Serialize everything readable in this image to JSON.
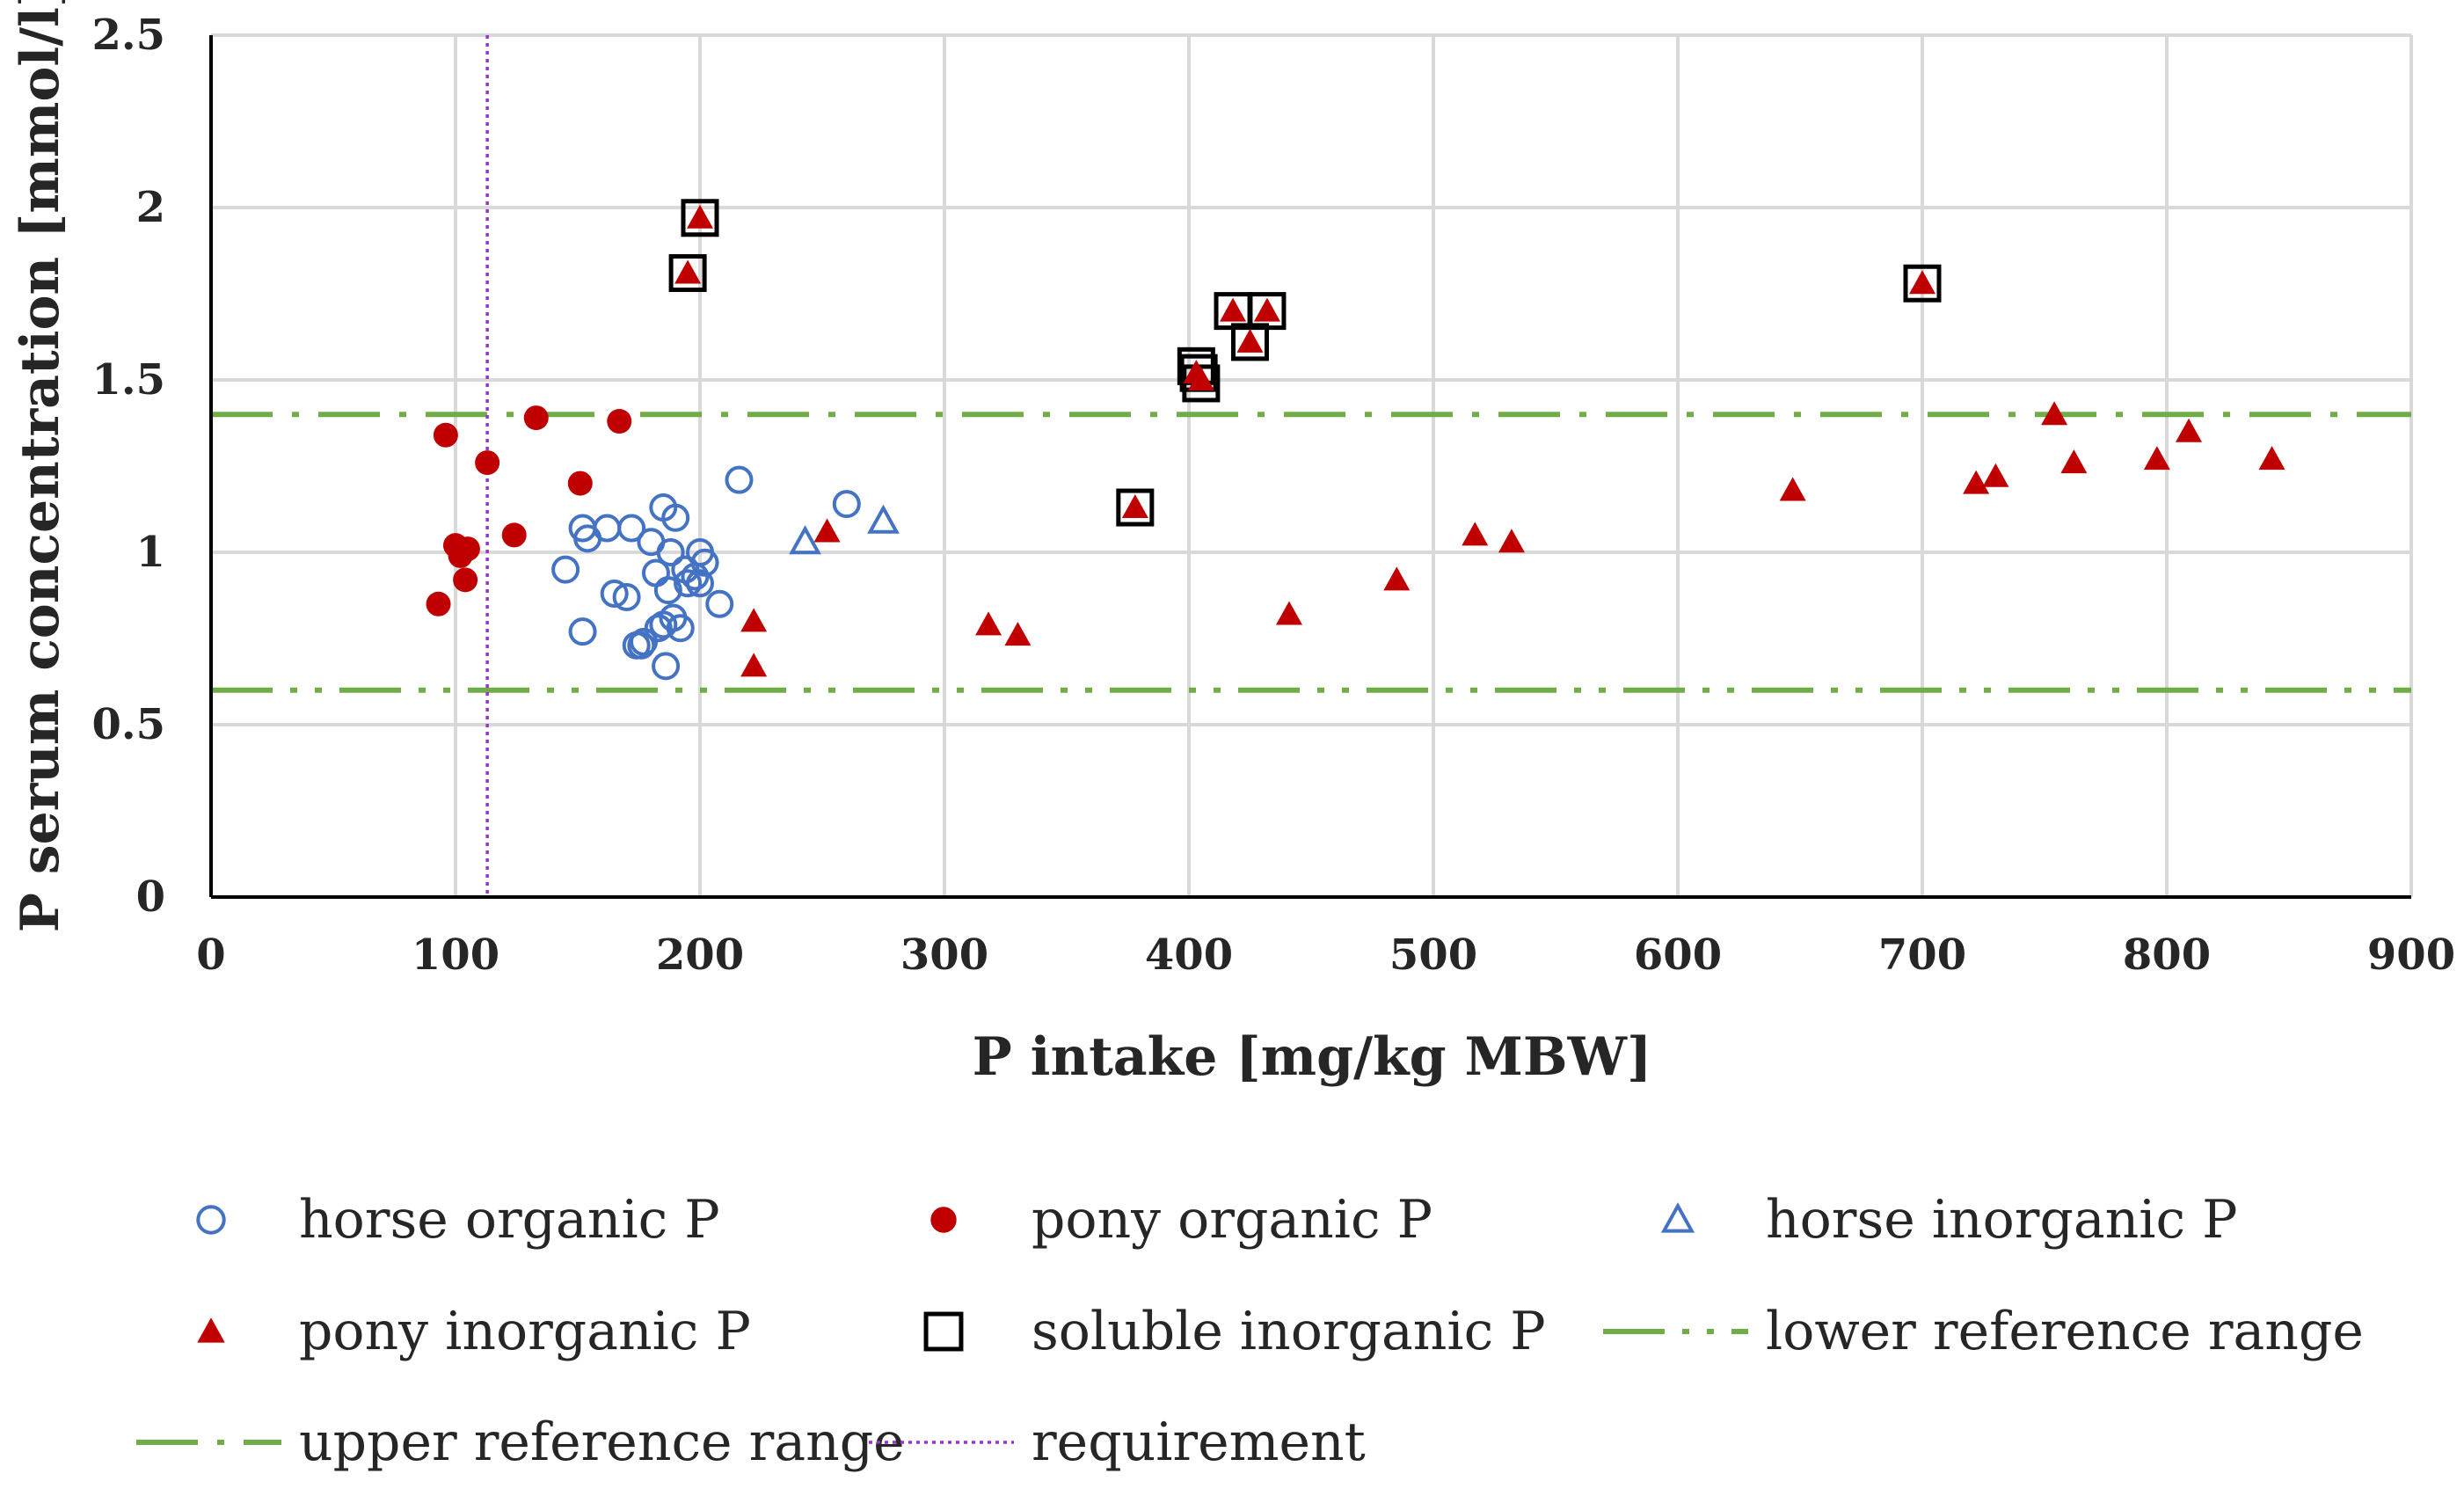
{
  "chart_data": {
    "type": "scatter",
    "title": "",
    "xlabel": "P intake [mg/kg MBW]",
    "ylabel": "P serum concentration [mmol/l]",
    "xlim": [
      0,
      900
    ],
    "ylim": [
      0,
      2.5
    ],
    "x_ticks": [
      0,
      100,
      200,
      300,
      400,
      500,
      600,
      700,
      800,
      900
    ],
    "y_ticks": [
      0,
      0.5,
      1,
      1.5,
      2,
      2.5
    ],
    "x_tick_labels": [
      "0",
      "100",
      "200",
      "300",
      "400",
      "500",
      "600",
      "700",
      "800",
      "900"
    ],
    "y_tick_labels": [
      "0",
      "0.5",
      "1",
      "1.5",
      "2",
      "2.5"
    ],
    "grid": true,
    "legend_position": "bottom",
    "series": [
      {
        "name": "horse organic P",
        "marker": "circle-open",
        "color": "#4472C4",
        "x": [
          145,
          152,
          152,
          154,
          162,
          165,
          170,
          172,
          174,
          176,
          177,
          180,
          182,
          183,
          185,
          185,
          186,
          187,
          188,
          189,
          190,
          192,
          194,
          195,
          198,
          200,
          200,
          202,
          208,
          216,
          260
        ],
        "y": [
          0.95,
          1.07,
          0.77,
          1.04,
          1.07,
          0.88,
          0.87,
          1.07,
          0.73,
          0.73,
          0.74,
          1.03,
          0.94,
          0.78,
          0.79,
          1.13,
          0.67,
          0.89,
          1.0,
          0.81,
          1.1,
          0.78,
          0.95,
          0.91,
          0.93,
          1.0,
          0.91,
          0.97,
          0.85,
          1.21,
          1.14
        ]
      },
      {
        "name": "pony organic P",
        "marker": "circle-filled",
        "color": "#C00000",
        "x": [
          93,
          96,
          100,
          102,
          104,
          105,
          113,
          124,
          133,
          151,
          167
        ],
        "y": [
          0.85,
          1.34,
          1.02,
          0.99,
          0.92,
          1.01,
          1.26,
          1.05,
          1.39,
          1.2,
          1.38
        ]
      },
      {
        "name": "horse inorganic P",
        "marker": "triangle-open",
        "color": "#4472C4",
        "x": [
          243,
          275
        ],
        "y": [
          1.03,
          1.09
        ]
      },
      {
        "name": "pony inorganic P",
        "marker": "triangle-filled",
        "color": "#C00000",
        "x": [
          195,
          200,
          222,
          222,
          252,
          318,
          330,
          378,
          403,
          405,
          418,
          425,
          432,
          441,
          485,
          517,
          532,
          647,
          700,
          722,
          730,
          754,
          762,
          796,
          809,
          843
        ],
        "y": [
          1.81,
          1.97,
          0.8,
          0.67,
          1.06,
          0.79,
          0.76,
          1.13,
          1.52,
          1.5,
          1.7,
          1.61,
          1.7,
          0.82,
          0.92,
          1.05,
          1.03,
          1.18,
          1.78,
          1.2,
          1.22,
          1.4,
          1.26,
          1.27,
          1.35,
          1.27
        ]
      },
      {
        "name": "soluble inorganic P",
        "marker": "square-open",
        "color": "#000000",
        "x": [
          195,
          200,
          378,
          403,
          404,
          405,
          418,
          425,
          432,
          700
        ],
        "y": [
          1.81,
          1.97,
          1.13,
          1.54,
          1.52,
          1.49,
          1.7,
          1.61,
          1.7,
          1.78
        ]
      }
    ],
    "reference_lines": [
      {
        "name": "lower reference range",
        "orientation": "horizontal",
        "value": 0.6,
        "style": "dash-dot-dot",
        "color": "#70AD47"
      },
      {
        "name": "upper reference range",
        "orientation": "horizontal",
        "value": 1.4,
        "style": "long-dash-dot",
        "color": "#70AD47"
      },
      {
        "name": "requirement",
        "orientation": "vertical",
        "value": 113,
        "style": "dotted",
        "color": "#9933CC"
      }
    ],
    "legend": [
      "horse organic P",
      "pony organic P",
      "horse inorganic P",
      "pony inorganic P",
      "soluble inorganic P",
      "lower reference range",
      "upper reference range",
      "requirement"
    ]
  }
}
